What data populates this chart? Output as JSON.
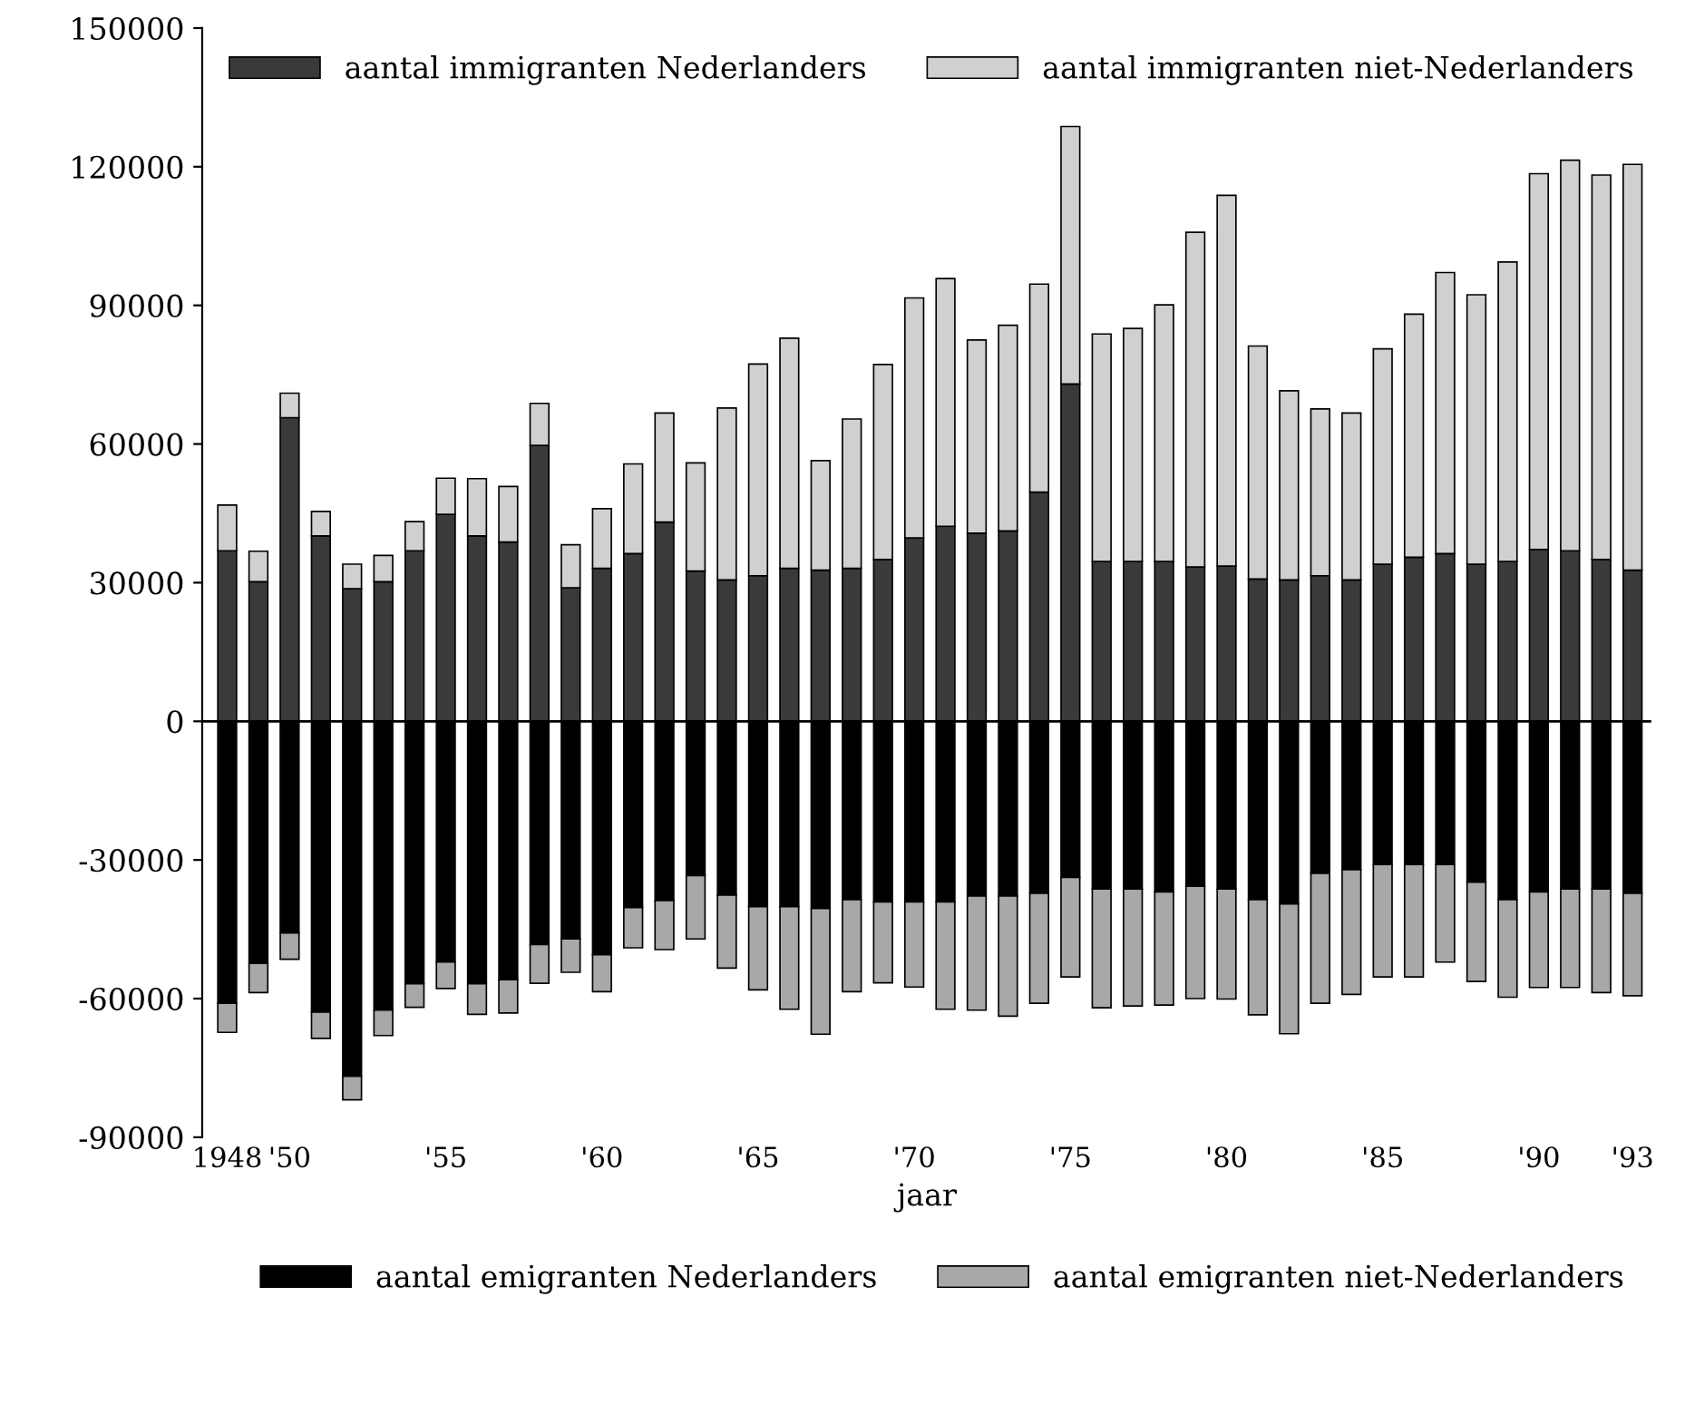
{
  "chart_data": {
    "type": "bar",
    "stacked": true,
    "xlabel": "jaar",
    "categories": [
      "1948",
      null,
      "'50",
      null,
      null,
      null,
      null,
      "'55",
      null,
      null,
      null,
      null,
      "'60",
      null,
      null,
      null,
      null,
      "'65",
      null,
      null,
      null,
      null,
      "'70",
      null,
      null,
      null,
      null,
      "'75",
      null,
      null,
      null,
      null,
      "'80",
      null,
      null,
      null,
      null,
      "'85",
      null,
      null,
      null,
      null,
      "'90",
      null,
      null,
      "'93"
    ],
    "series": [
      {
        "name": "aantal immigranten Nederlanders",
        "color": "#3a3a3a",
        "values": [
          36900,
          30200,
          65700,
          40100,
          28700,
          30200,
          36900,
          44800,
          40100,
          38800,
          59700,
          28900,
          33100,
          36300,
          43100,
          32500,
          30600,
          31500,
          33100,
          32700,
          33100,
          35000,
          39700,
          42200,
          40700,
          41200,
          49600,
          73000,
          34600,
          34600,
          34600,
          33400,
          33600,
          30800,
          30600,
          31500,
          30600,
          34000,
          35500,
          36300,
          34000,
          34600,
          37200,
          36900,
          35000,
          32700
        ]
      },
      {
        "name": "aantal immigranten niet-Nederlanders",
        "color": "#d0d0d0",
        "values": [
          9900,
          6600,
          5300,
          5300,
          5300,
          5700,
          6300,
          7800,
          12400,
          12000,
          9100,
          9300,
          12900,
          19400,
          23600,
          23400,
          37200,
          45800,
          49800,
          23700,
          32300,
          42200,
          51900,
          53600,
          41800,
          44500,
          45000,
          55700,
          49200,
          50400,
          55500,
          72400,
          80200,
          50400,
          40900,
          36100,
          36100,
          46600,
          52600,
          60800,
          58300,
          64800,
          81300,
          84500,
          83200,
          87800
        ]
      },
      {
        "name": "aantal emigranten Nederlanders",
        "color": "#000000",
        "values": [
          -61000,
          -52400,
          -45800,
          -62900,
          -76800,
          -62500,
          -56800,
          -52100,
          -56800,
          -55900,
          -48300,
          -47100,
          -50500,
          -40300,
          -38800,
          -33400,
          -37600,
          -40100,
          -40100,
          -40500,
          -38600,
          -39100,
          -39100,
          -39100,
          -37800,
          -37800,
          -37200,
          -33800,
          -36300,
          -36300,
          -36900,
          -35700,
          -36300,
          -38600,
          -39500,
          -32900,
          -32100,
          -31000,
          -31000,
          -31000,
          -34800,
          -38600,
          -36900,
          -36300,
          -36300,
          -37200
        ]
      },
      {
        "name": "aantal emigranten niet-Nederlanders",
        "color": "#a8a8a8",
        "values": [
          -6300,
          -6300,
          -5700,
          -5700,
          -5100,
          -5500,
          -5100,
          -5700,
          -6600,
          -7200,
          -8400,
          -7200,
          -8000,
          -8700,
          -10600,
          -13700,
          -15800,
          -18000,
          -22200,
          -27200,
          -19900,
          -17500,
          -18400,
          -23200,
          -24700,
          -26000,
          -23800,
          -21500,
          -25700,
          -25300,
          -24500,
          -24300,
          -23800,
          -24900,
          -28100,
          -28100,
          -27000,
          -24300,
          -24300,
          -21100,
          -21500,
          -21100,
          -20700,
          -21300,
          -22400,
          -22200
        ]
      }
    ],
    "ylim": [
      -90000,
      150000
    ],
    "yticks": [
      -90000,
      -60000,
      -30000,
      0,
      30000,
      60000,
      90000,
      120000,
      150000
    ],
    "ref_lines": [
      {
        "axis": "y",
        "value": 0,
        "color": "#000000"
      }
    ],
    "grid": false,
    "legend": "bottom right"
  }
}
